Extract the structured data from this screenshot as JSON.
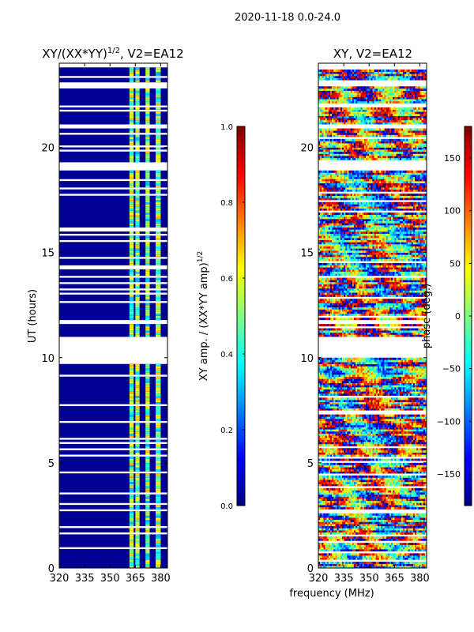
{
  "figure_title": "2020-11-18 0.0-24.0",
  "shared_xlabel": "frequency (MHz)",
  "colors": {
    "no_data": "#ffffff",
    "frame": "#000000",
    "jet_stops": [
      "#00007f",
      "#0000ff",
      "#007fff",
      "#00ffff",
      "#7fff7f",
      "#ffff00",
      "#ff7f00",
      "#ff0000",
      "#7f0000"
    ]
  },
  "chart_data": [
    {
      "type": "heatmap",
      "title_main": "XY/(XX*YY)",
      "title_sup": "1/2",
      "title_rest": ", V2=EA12",
      "xlabel": "",
      "ylabel": "UT (hours)",
      "xlim": [
        320,
        384
      ],
      "ylim": [
        0,
        24
      ],
      "xticks": [
        320,
        335,
        350,
        365,
        380
      ],
      "yticks": [
        0,
        5,
        10,
        15,
        20
      ],
      "colorbar": {
        "label_main": "XY amp. / (XX*YY amp)",
        "label_sup": "1/2",
        "range": [
          0.0,
          1.0
        ],
        "ticks": [
          0.0,
          0.2,
          0.4,
          0.6,
          0.8,
          1.0
        ],
        "tick_labels": [
          "0.0",
          "0.2",
          "0.4",
          "0.6",
          "0.8",
          "1.0"
        ]
      },
      "data_gaps_hours": [
        [
          10.05,
          11.0
        ],
        [
          11.6,
          11.85
        ],
        [
          18.95,
          19.35
        ],
        [
          20.95,
          21.1
        ],
        [
          22.95,
          23.1
        ],
        [
          23.85,
          24.0
        ]
      ],
      "bright_channels_MHz": [
        [
          361.5,
          364.0
        ],
        [
          365.0,
          367.5
        ],
        [
          371.0,
          373.5
        ],
        [
          377.0,
          380.0
        ]
      ],
      "typical_value_outside_bands": 0.02,
      "typical_value_in_bands": [
        0.3,
        0.7
      ]
    },
    {
      "type": "heatmap",
      "title_main": "XY, V2=EA12",
      "xlabel": "",
      "ylabel": "",
      "xlim": [
        320,
        384
      ],
      "ylim": [
        0,
        24
      ],
      "xticks": [
        320,
        335,
        350,
        365,
        380
      ],
      "yticks": [
        0,
        5,
        10,
        15,
        20
      ],
      "colorbar": {
        "label_main": "phase (deg.)",
        "range": [
          -180,
          180
        ],
        "ticks": [
          -150,
          -100,
          -50,
          0,
          50,
          100,
          150
        ],
        "tick_labels": [
          "−150",
          "−100",
          "−50",
          "0",
          "50",
          "100",
          "150"
        ]
      },
      "data_gaps_hours": [
        [
          10.05,
          11.0
        ],
        [
          11.6,
          11.85
        ],
        [
          18.95,
          19.35
        ],
        [
          20.95,
          21.1
        ],
        [
          22.95,
          23.1
        ],
        [
          23.85,
          24.0
        ]
      ],
      "value_range_deg": [
        -180,
        180
      ]
    }
  ]
}
